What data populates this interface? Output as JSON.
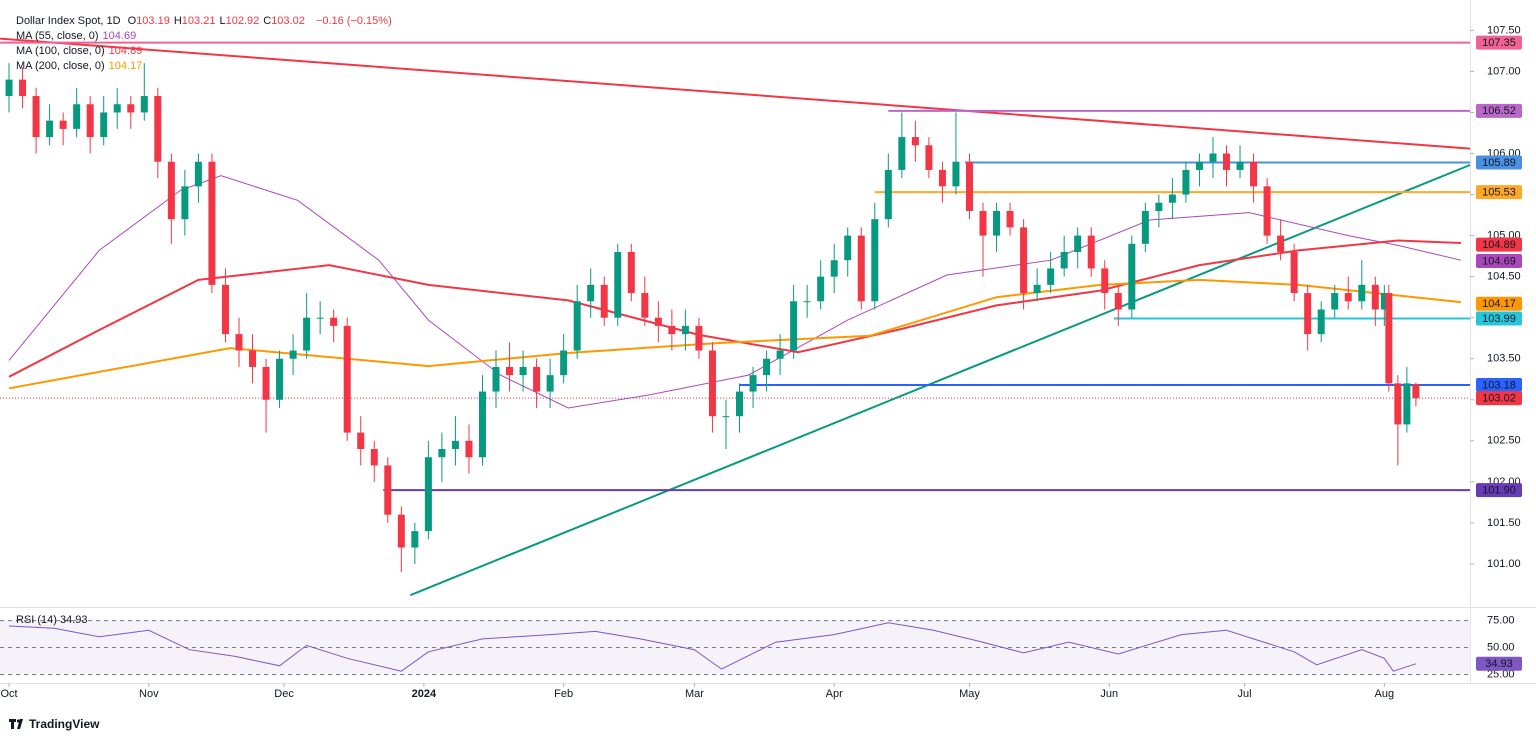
{
  "chart_data": {
    "type": "candlestick",
    "title": "Dollar Index Spot, 1D",
    "ohlc": [
      {
        "label": "O",
        "value": 103.19
      },
      {
        "label": "H",
        "value": 103.21
      },
      {
        "label": "L",
        "value": 102.92
      },
      {
        "label": "C",
        "value": 103.02
      }
    ],
    "change": "−0.16 (−0.15%)",
    "up_color": "#089981",
    "down_color": "#f23645",
    "xlim": [
      -2,
      324
    ],
    "xticks": [
      {
        "value": 0,
        "label": "Oct"
      },
      {
        "value": 31,
        "label": "Nov"
      },
      {
        "value": 61,
        "label": "Dec"
      },
      {
        "value": 92,
        "label": "2024"
      },
      {
        "value": 123,
        "label": "Feb"
      },
      {
        "value": 152,
        "label": "Mar"
      },
      {
        "value": 183,
        "label": "Apr"
      },
      {
        "value": 213,
        "label": "May"
      },
      {
        "value": 244,
        "label": "Jun"
      },
      {
        "value": 274,
        "label": "Jul"
      },
      {
        "value": 305,
        "label": "Aug"
      }
    ],
    "ylim": [
      100.5,
      107.87
    ],
    "yticks": [
      {
        "value": 101,
        "label": "101.00"
      },
      {
        "value": 101.5,
        "label": "101.50"
      },
      {
        "value": 102,
        "label": "102.00"
      },
      {
        "value": 102.5,
        "label": "102.50"
      },
      {
        "value": 103,
        "label": "103.00"
      },
      {
        "value": 103.5,
        "label": "103.50"
      },
      {
        "value": 104,
        "label": "104.00"
      },
      {
        "value": 104.5,
        "label": "104.50"
      },
      {
        "value": 105,
        "label": "105.00"
      },
      {
        "value": 105.5,
        "label": "105.50"
      },
      {
        "value": 106,
        "label": "106.00"
      },
      {
        "value": 106.5,
        "label": "106.50"
      },
      {
        "value": 107,
        "label": "107.00"
      },
      {
        "value": 107.5,
        "label": "107.50"
      }
    ],
    "candles": [
      [
        0,
        106.7,
        107.1,
        106.5,
        106.9
      ],
      [
        3,
        106.9,
        107.05,
        106.55,
        106.7
      ],
      [
        6,
        106.7,
        106.8,
        106.0,
        106.2
      ],
      [
        9,
        106.2,
        106.6,
        106.1,
        106.4
      ],
      [
        12,
        106.4,
        106.5,
        106.1,
        106.3
      ],
      [
        15,
        106.3,
        106.8,
        106.2,
        106.6
      ],
      [
        18,
        106.6,
        106.7,
        106.0,
        106.2
      ],
      [
        21,
        106.2,
        106.7,
        106.1,
        106.5
      ],
      [
        24,
        106.5,
        106.8,
        106.3,
        106.6
      ],
      [
        27,
        106.6,
        106.7,
        106.3,
        106.5
      ],
      [
        30,
        106.5,
        107.1,
        106.4,
        106.7
      ],
      [
        33,
        106.7,
        106.8,
        105.7,
        105.9
      ],
      [
        36,
        105.9,
        106.0,
        104.9,
        105.2
      ],
      [
        39,
        105.2,
        105.8,
        105.0,
        105.6
      ],
      [
        42,
        105.6,
        106.0,
        105.4,
        105.9
      ],
      [
        45,
        105.9,
        106.0,
        104.3,
        104.4
      ],
      [
        48,
        104.4,
        104.6,
        103.7,
        103.8
      ],
      [
        51,
        103.8,
        104.0,
        103.4,
        103.6
      ],
      [
        54,
        103.6,
        103.8,
        103.2,
        103.4
      ],
      [
        57,
        103.4,
        103.5,
        102.6,
        103.0
      ],
      [
        60,
        103.0,
        103.6,
        102.9,
        103.5
      ],
      [
        63,
        103.5,
        103.8,
        103.3,
        103.6
      ],
      [
        66,
        103.6,
        104.3,
        103.5,
        104.0
      ],
      [
        69,
        104.0,
        104.2,
        103.8,
        104.0
      ],
      [
        72,
        104.0,
        104.1,
        103.7,
        103.9
      ],
      [
        75,
        103.9,
        104.0,
        102.5,
        102.6
      ],
      [
        78,
        102.6,
        102.8,
        102.2,
        102.4
      ],
      [
        81,
        102.4,
        102.5,
        102.0,
        102.2
      ],
      [
        84,
        102.2,
        102.3,
        101.5,
        101.6
      ],
      [
        87,
        101.6,
        101.7,
        100.9,
        101.2
      ],
      [
        90,
        101.2,
        101.5,
        101.0,
        101.4
      ],
      [
        93,
        101.4,
        102.5,
        101.3,
        102.3
      ],
      [
        96,
        102.3,
        102.6,
        102.0,
        102.4
      ],
      [
        99,
        102.4,
        102.8,
        102.2,
        102.5
      ],
      [
        102,
        102.5,
        102.7,
        102.1,
        102.3
      ],
      [
        105,
        102.3,
        103.3,
        102.2,
        103.1
      ],
      [
        108,
        103.1,
        103.6,
        102.9,
        103.4
      ],
      [
        111,
        103.4,
        103.7,
        103.1,
        103.3
      ],
      [
        114,
        103.3,
        103.6,
        103.1,
        103.4
      ],
      [
        117,
        103.4,
        103.5,
        102.9,
        103.1
      ],
      [
        120,
        103.1,
        103.5,
        102.9,
        103.3
      ],
      [
        123,
        103.3,
        103.8,
        103.2,
        103.6
      ],
      [
        126,
        103.6,
        104.4,
        103.5,
        104.2
      ],
      [
        129,
        104.2,
        104.6,
        104.0,
        104.4
      ],
      [
        132,
        104.4,
        104.5,
        103.9,
        104.0
      ],
      [
        135,
        104.0,
        104.9,
        103.9,
        104.8
      ],
      [
        138,
        104.8,
        104.9,
        104.2,
        104.3
      ],
      [
        141,
        104.3,
        104.5,
        103.9,
        104.0
      ],
      [
        144,
        104.0,
        104.2,
        103.7,
        103.9
      ],
      [
        147,
        103.9,
        104.1,
        103.6,
        103.8
      ],
      [
        150,
        103.8,
        104.1,
        103.6,
        103.9
      ],
      [
        153,
        103.9,
        104.0,
        103.5,
        103.6
      ],
      [
        156,
        103.6,
        103.7,
        102.6,
        102.8
      ],
      [
        159,
        102.8,
        103.0,
        102.4,
        102.8
      ],
      [
        162,
        102.8,
        103.2,
        102.6,
        103.1
      ],
      [
        165,
        103.1,
        103.4,
        102.9,
        103.3
      ],
      [
        168,
        103.3,
        103.6,
        103.1,
        103.5
      ],
      [
        171,
        103.5,
        103.8,
        103.3,
        103.6
      ],
      [
        174,
        103.6,
        104.4,
        103.5,
        104.2
      ],
      [
        177,
        104.2,
        104.4,
        104.0,
        104.2
      ],
      [
        180,
        104.2,
        104.7,
        104.1,
        104.5
      ],
      [
        183,
        104.5,
        104.9,
        104.3,
        104.7
      ],
      [
        186,
        104.7,
        105.1,
        104.5,
        105.0
      ],
      [
        189,
        105.0,
        105.1,
        104.1,
        104.2
      ],
      [
        192,
        104.2,
        105.4,
        104.1,
        105.2
      ],
      [
        195,
        105.2,
        106.0,
        105.1,
        105.8
      ],
      [
        198,
        105.8,
        106.5,
        105.7,
        106.2
      ],
      [
        201,
        106.2,
        106.4,
        105.9,
        106.1
      ],
      [
        204,
        106.1,
        106.2,
        105.7,
        105.8
      ],
      [
        207,
        105.8,
        105.9,
        105.4,
        105.6
      ],
      [
        210,
        105.6,
        106.5,
        105.5,
        105.9
      ],
      [
        213,
        105.9,
        106.0,
        105.2,
        105.3
      ],
      [
        216,
        105.3,
        105.4,
        104.5,
        105.0
      ],
      [
        219,
        105.0,
        105.4,
        104.8,
        105.3
      ],
      [
        222,
        105.3,
        105.4,
        105.0,
        105.1
      ],
      [
        225,
        105.1,
        105.2,
        104.1,
        104.3
      ],
      [
        228,
        104.3,
        104.6,
        104.2,
        104.4
      ],
      [
        231,
        104.4,
        104.8,
        104.3,
        104.6
      ],
      [
        234,
        104.6,
        105.0,
        104.5,
        104.8
      ],
      [
        237,
        104.8,
        105.1,
        104.6,
        105.0
      ],
      [
        240,
        105.0,
        105.1,
        104.5,
        104.6
      ],
      [
        243,
        104.6,
        104.7,
        104.1,
        104.3
      ],
      [
        246,
        104.3,
        104.4,
        103.9,
        104.1
      ],
      [
        249,
        104.1,
        105.0,
        104.0,
        104.9
      ],
      [
        252,
        104.9,
        105.4,
        104.8,
        105.3
      ],
      [
        255,
        105.3,
        105.5,
        105.1,
        105.4
      ],
      [
        258,
        105.4,
        105.7,
        105.2,
        105.5
      ],
      [
        261,
        105.5,
        105.9,
        105.4,
        105.8
      ],
      [
        264,
        105.8,
        106.0,
        105.6,
        105.9
      ],
      [
        267,
        105.9,
        106.2,
        105.7,
        106.0
      ],
      [
        270,
        106.0,
        106.1,
        105.6,
        105.8
      ],
      [
        273,
        105.8,
        106.1,
        105.7,
        105.9
      ],
      [
        276,
        105.9,
        106.0,
        105.4,
        105.6
      ],
      [
        279,
        105.6,
        105.7,
        104.9,
        105.0
      ],
      [
        282,
        105.0,
        105.2,
        104.7,
        104.8
      ],
      [
        285,
        104.8,
        104.9,
        104.2,
        104.3
      ],
      [
        288,
        104.3,
        104.4,
        103.6,
        103.8
      ],
      [
        291,
        103.8,
        104.2,
        103.7,
        104.1
      ],
      [
        294,
        104.1,
        104.4,
        104.0,
        104.3
      ],
      [
        297,
        104.3,
        104.5,
        104.1,
        104.2
      ],
      [
        300,
        104.2,
        104.7,
        104.1,
        104.4
      ],
      [
        303,
        104.4,
        104.5,
        103.9,
        104.1
      ],
      [
        305,
        104.1,
        104.4,
        103.9,
        104.3
      ],
      [
        306,
        104.3,
        104.4,
        103.1,
        103.2
      ],
      [
        308,
        103.2,
        103.3,
        102.2,
        102.7
      ],
      [
        310,
        102.7,
        103.4,
        102.6,
        103.2
      ],
      [
        312,
        103.19,
        103.21,
        102.92,
        103.02
      ]
    ],
    "series": [
      {
        "name": "MA (55, close, 0)",
        "last": 104.69,
        "color": "#ab47bc",
        "x": [
          0,
          20,
          38,
          47,
          64,
          82,
          93,
          109,
          124,
          142,
          164,
          186,
          208,
          231,
          253,
          275,
          297,
          308,
          322
        ],
        "values": [
          103.48,
          104.82,
          105.55,
          105.73,
          105.43,
          104.7,
          103.97,
          103.3,
          102.9,
          103.06,
          103.3,
          103.97,
          104.52,
          104.7,
          105.19,
          105.28,
          105.0,
          104.88,
          104.7
        ]
      },
      {
        "name": "MA (100, close, 0)",
        "last": 104.89,
        "color": "#f23645",
        "x": [
          0,
          20,
          42,
          71,
          93,
          124,
          153,
          175,
          197,
          219,
          242,
          264,
          286,
          308,
          322
        ],
        "values": [
          103.28,
          103.85,
          104.46,
          104.64,
          104.4,
          104.21,
          103.79,
          103.58,
          103.85,
          104.15,
          104.33,
          104.64,
          104.82,
          104.94,
          104.91
        ]
      },
      {
        "name": "MA (200, close, 0)",
        "last": 104.17,
        "color": "#ff9800",
        "x": [
          0,
          49,
          93,
          124,
          157,
          191,
          219,
          242,
          264,
          286,
          308,
          322
        ],
        "values": [
          103.14,
          103.63,
          103.41,
          103.57,
          103.69,
          103.78,
          104.25,
          104.4,
          104.46,
          104.4,
          104.27,
          104.19
        ]
      }
    ],
    "levels": [
      {
        "value": 107.35,
        "color": "#f06292",
        "from": -2
      },
      {
        "value": 106.52,
        "color": "#ba68c8",
        "from": 195
      },
      {
        "value": 105.89,
        "color": "#4a90e2",
        "from": 212
      },
      {
        "value": 105.53,
        "color": "#ffa726",
        "from": 192
      },
      {
        "value": 103.99,
        "color": "#26c6da",
        "from": 245
      },
      {
        "value": 103.18,
        "color": "#2962ff",
        "from": 162
      },
      {
        "value": 101.9,
        "label": "101.90",
        "color": "#673ab7",
        "from": 83
      }
    ],
    "current": {
      "value": 103.02,
      "color": "#f23645"
    },
    "trendlines": [
      {
        "color": "#f23645",
        "points": [
          [
            -2,
            107.4
          ],
          [
            324,
            106.06
          ]
        ]
      },
      {
        "color": "#089981",
        "points": [
          [
            89,
            100.62
          ],
          [
            324,
            105.86
          ]
        ]
      }
    ],
    "rsi": {
      "name": "RSI (14)",
      "last": 34.93,
      "color": "#7e57c2",
      "ylim": [
        18,
        83
      ],
      "yticks": [
        {
          "value": 75,
          "label": "75.00"
        },
        {
          "value": 50,
          "label": "50.00"
        },
        {
          "value": 25,
          "label": "25.00"
        }
      ],
      "x": [
        0,
        10,
        20,
        31,
        40,
        50,
        60,
        66,
        75,
        87,
        93,
        105,
        120,
        130,
        140,
        152,
        158,
        170,
        183,
        195,
        205,
        215,
        225,
        235,
        246,
        260,
        270,
        285,
        290,
        300,
        305,
        307,
        312
      ],
      "values": [
        70,
        68,
        60,
        66,
        48,
        42,
        33,
        52,
        40,
        28,
        46,
        58,
        62,
        65,
        58,
        48,
        30,
        55,
        62,
        73,
        66,
        56,
        45,
        55,
        44,
        62,
        66,
        46,
        34,
        48,
        40,
        28,
        34.93
      ]
    },
    "brand": "TradingView"
  }
}
